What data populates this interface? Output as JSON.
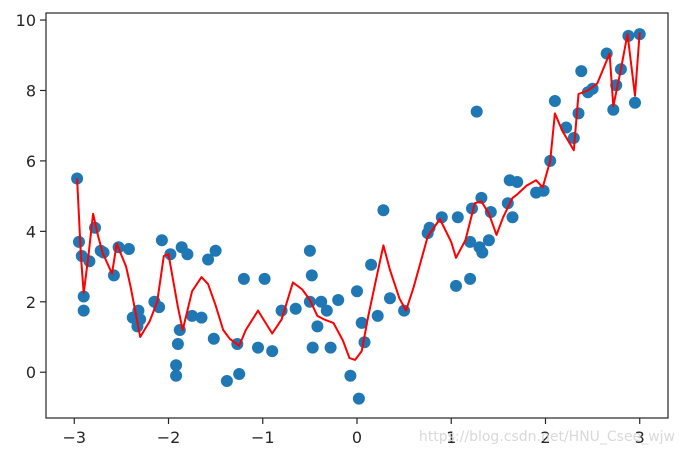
{
  "chart_data": {
    "type": "scatter",
    "title": "",
    "xlabel": "",
    "ylabel": "",
    "xlim": [
      -3.3,
      3.3
    ],
    "ylim": [
      -1.3,
      10.2
    ],
    "x_ticks": [
      -3,
      -2,
      -1,
      0,
      1,
      2,
      3
    ],
    "x_tick_labels": [
      "−3",
      "−2",
      "−1",
      "0",
      "1",
      "2",
      "3"
    ],
    "y_ticks": [
      0,
      2,
      4,
      6,
      8,
      10
    ],
    "y_tick_labels": [
      "0",
      "2",
      "4",
      "6",
      "8",
      "10"
    ],
    "grid": false,
    "series": [
      {
        "kind": "scatter",
        "color": "#1f77b4",
        "points": [
          [
            -2.97,
            5.5
          ],
          [
            -2.95,
            3.7
          ],
          [
            -2.92,
            3.3
          ],
          [
            -2.9,
            2.15
          ],
          [
            -2.9,
            1.75
          ],
          [
            -2.84,
            3.15
          ],
          [
            -2.78,
            4.1
          ],
          [
            -2.72,
            3.45
          ],
          [
            -2.69,
            3.4
          ],
          [
            -2.58,
            2.75
          ],
          [
            -2.53,
            3.55
          ],
          [
            -2.42,
            3.5
          ],
          [
            -2.38,
            1.55
          ],
          [
            -2.33,
            1.3
          ],
          [
            -2.32,
            1.75
          ],
          [
            -2.3,
            1.5
          ],
          [
            -2.15,
            2.0
          ],
          [
            -2.1,
            1.85
          ],
          [
            -2.07,
            3.75
          ],
          [
            -1.98,
            3.35
          ],
          [
            -1.92,
            0.2
          ],
          [
            -1.92,
            -0.1
          ],
          [
            -1.9,
            0.8
          ],
          [
            -1.88,
            1.2
          ],
          [
            -1.86,
            3.55
          ],
          [
            -1.8,
            3.35
          ],
          [
            -1.75,
            1.6
          ],
          [
            -1.65,
            1.55
          ],
          [
            -1.58,
            3.2
          ],
          [
            -1.52,
            0.95
          ],
          [
            -1.5,
            3.45
          ],
          [
            -1.38,
            -0.25
          ],
          [
            -1.27,
            0.8
          ],
          [
            -1.25,
            -0.05
          ],
          [
            -1.2,
            2.65
          ],
          [
            -1.05,
            0.7
          ],
          [
            -0.98,
            2.65
          ],
          [
            -0.9,
            0.6
          ],
          [
            -0.8,
            1.75
          ],
          [
            -0.65,
            1.8
          ],
          [
            -0.5,
            2.0
          ],
          [
            -0.5,
            3.45
          ],
          [
            -0.48,
            2.75
          ],
          [
            -0.47,
            0.7
          ],
          [
            -0.42,
            1.3
          ],
          [
            -0.38,
            2.0
          ],
          [
            -0.32,
            1.75
          ],
          [
            -0.28,
            0.7
          ],
          [
            -0.2,
            2.05
          ],
          [
            -0.07,
            -0.1
          ],
          [
            0.0,
            2.3
          ],
          [
            0.02,
            -0.75
          ],
          [
            0.05,
            1.4
          ],
          [
            0.08,
            0.85
          ],
          [
            0.15,
            3.05
          ],
          [
            0.22,
            1.6
          ],
          [
            0.28,
            4.6
          ],
          [
            0.35,
            2.1
          ],
          [
            0.5,
            1.75
          ],
          [
            0.75,
            3.95
          ],
          [
            0.77,
            4.1
          ],
          [
            0.9,
            4.4
          ],
          [
            1.05,
            2.45
          ],
          [
            1.07,
            4.4
          ],
          [
            1.2,
            2.65
          ],
          [
            1.2,
            3.7
          ],
          [
            1.22,
            4.65
          ],
          [
            1.27,
            7.4
          ],
          [
            1.3,
            3.55
          ],
          [
            1.32,
            4.95
          ],
          [
            1.33,
            3.4
          ],
          [
            1.4,
            3.75
          ],
          [
            1.42,
            4.55
          ],
          [
            1.6,
            4.8
          ],
          [
            1.62,
            5.45
          ],
          [
            1.65,
            4.4
          ],
          [
            1.7,
            5.4
          ],
          [
            1.9,
            5.1
          ],
          [
            1.98,
            5.15
          ],
          [
            2.05,
            6.0
          ],
          [
            2.1,
            7.7
          ],
          [
            2.22,
            6.95
          ],
          [
            2.3,
            6.65
          ],
          [
            2.35,
            7.35
          ],
          [
            2.38,
            8.55
          ],
          [
            2.45,
            7.95
          ],
          [
            2.5,
            8.05
          ],
          [
            2.65,
            9.05
          ],
          [
            2.72,
            7.45
          ],
          [
            2.75,
            8.15
          ],
          [
            2.8,
            8.6
          ],
          [
            2.88,
            9.55
          ],
          [
            2.95,
            7.65
          ],
          [
            3.0,
            9.6
          ]
        ]
      },
      {
        "kind": "line",
        "color": "#ff0000",
        "points": [
          [
            -2.97,
            5.5
          ],
          [
            -2.93,
            3.3
          ],
          [
            -2.9,
            2.25
          ],
          [
            -2.85,
            3.3
          ],
          [
            -2.8,
            4.5
          ],
          [
            -2.75,
            3.9
          ],
          [
            -2.7,
            3.4
          ],
          [
            -2.6,
            2.8
          ],
          [
            -2.55,
            3.65
          ],
          [
            -2.45,
            3.0
          ],
          [
            -2.4,
            2.4
          ],
          [
            -2.3,
            1.0
          ],
          [
            -2.2,
            1.45
          ],
          [
            -2.12,
            2.0
          ],
          [
            -2.05,
            3.3
          ],
          [
            -2.0,
            3.35
          ],
          [
            -1.95,
            2.6
          ],
          [
            -1.9,
            1.85
          ],
          [
            -1.85,
            1.2
          ],
          [
            -1.75,
            2.3
          ],
          [
            -1.65,
            2.7
          ],
          [
            -1.58,
            2.5
          ],
          [
            -1.5,
            1.9
          ],
          [
            -1.42,
            1.2
          ],
          [
            -1.35,
            0.95
          ],
          [
            -1.25,
            0.75
          ],
          [
            -1.18,
            1.2
          ],
          [
            -1.05,
            1.75
          ],
          [
            -0.9,
            1.1
          ],
          [
            -0.8,
            1.5
          ],
          [
            -0.68,
            2.55
          ],
          [
            -0.58,
            2.35
          ],
          [
            -0.5,
            2.05
          ],
          [
            -0.42,
            1.6
          ],
          [
            -0.35,
            1.5
          ],
          [
            -0.25,
            1.4
          ],
          [
            -0.15,
            0.9
          ],
          [
            -0.08,
            0.4
          ],
          [
            -0.02,
            0.35
          ],
          [
            0.05,
            0.6
          ],
          [
            0.12,
            1.6
          ],
          [
            0.2,
            2.6
          ],
          [
            0.28,
            3.6
          ],
          [
            0.35,
            2.9
          ],
          [
            0.45,
            2.1
          ],
          [
            0.52,
            1.75
          ],
          [
            0.6,
            2.4
          ],
          [
            0.75,
            3.85
          ],
          [
            0.88,
            4.35
          ],
          [
            1.0,
            3.7
          ],
          [
            1.05,
            3.25
          ],
          [
            1.15,
            3.75
          ],
          [
            1.25,
            4.8
          ],
          [
            1.32,
            4.85
          ],
          [
            1.4,
            4.5
          ],
          [
            1.48,
            3.9
          ],
          [
            1.55,
            4.4
          ],
          [
            1.65,
            4.95
          ],
          [
            1.7,
            5.05
          ],
          [
            1.8,
            5.3
          ],
          [
            1.9,
            5.45
          ],
          [
            1.97,
            5.25
          ],
          [
            2.05,
            6.0
          ],
          [
            2.1,
            7.35
          ],
          [
            2.18,
            6.85
          ],
          [
            2.3,
            6.3
          ],
          [
            2.35,
            7.9
          ],
          [
            2.45,
            8.0
          ],
          [
            2.55,
            8.2
          ],
          [
            2.68,
            9.05
          ],
          [
            2.72,
            7.55
          ],
          [
            2.8,
            8.6
          ],
          [
            2.87,
            9.6
          ],
          [
            2.95,
            7.85
          ],
          [
            3.0,
            9.65
          ]
        ]
      }
    ]
  },
  "watermark": "https://blog.csdn.net/HNU_Csee_wjw"
}
